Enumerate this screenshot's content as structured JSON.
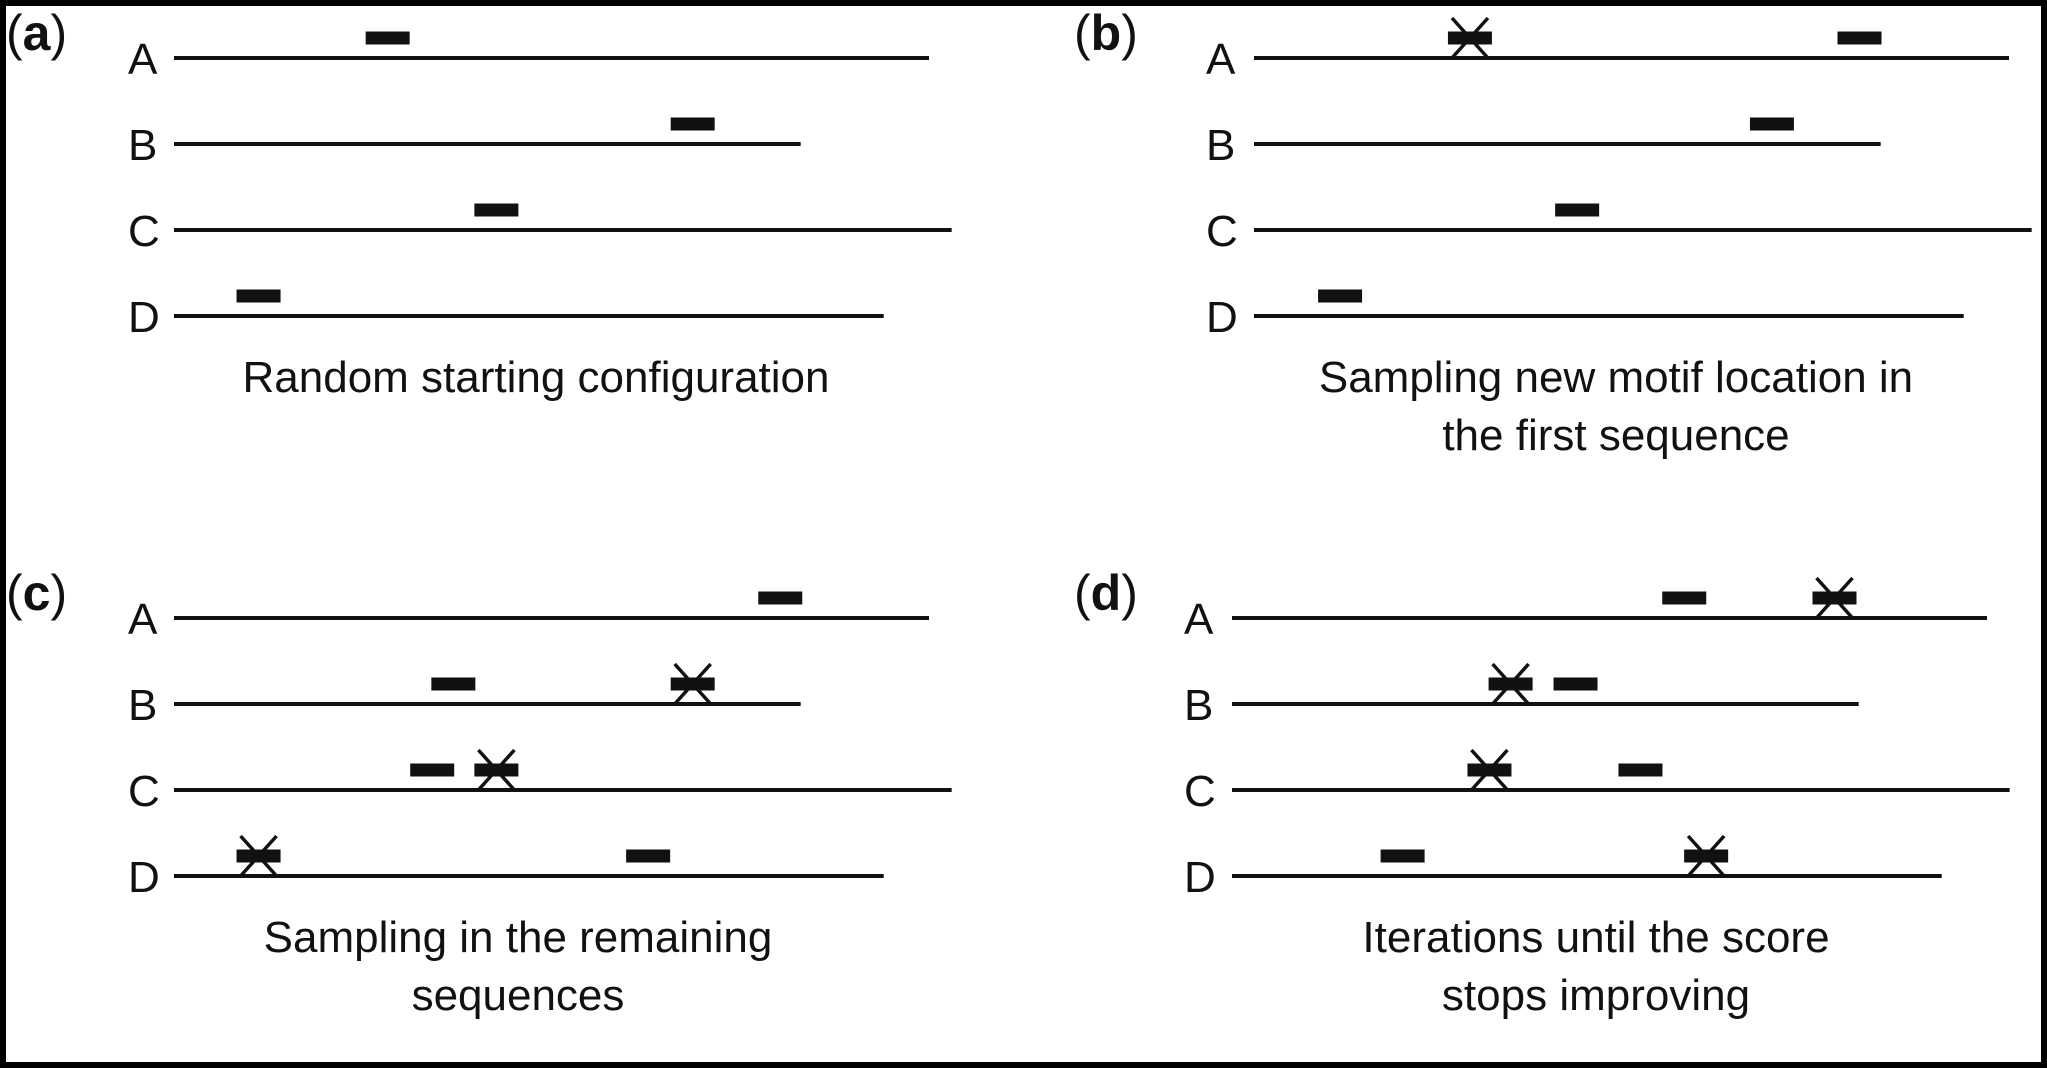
{
  "diagram": {
    "type": "motif-sampling-schematic",
    "colors": {
      "background": "#ffffff",
      "frame": "#000000",
      "ink": "#111111"
    },
    "panels": [
      {
        "id": "a",
        "label": "a",
        "caption_lines": [
          "Random starting configuration"
        ],
        "sequences": [
          {
            "name": "A",
            "length": 1.0,
            "motifs": [
              {
                "pos": 0.283,
                "crossed": false
              }
            ]
          },
          {
            "name": "B",
            "length": 0.83,
            "motifs": [
              {
                "pos": 0.687,
                "crossed": false
              }
            ]
          },
          {
            "name": "C",
            "length": 1.03,
            "motifs": [
              {
                "pos": 0.427,
                "crossed": false
              }
            ]
          },
          {
            "name": "D",
            "length": 0.94,
            "motifs": [
              {
                "pos": 0.112,
                "crossed": false
              }
            ]
          }
        ]
      },
      {
        "id": "b",
        "label": "b",
        "caption_lines": [
          "Sampling new motif location in",
          "the first sequence"
        ],
        "sequences": [
          {
            "name": "A",
            "length": 1.0,
            "motifs": [
              {
                "pos": 0.286,
                "crossed": true
              },
              {
                "pos": 0.802,
                "crossed": false
              }
            ]
          },
          {
            "name": "B",
            "length": 0.83,
            "motifs": [
              {
                "pos": 0.686,
                "crossed": false
              }
            ]
          },
          {
            "name": "C",
            "length": 1.03,
            "motifs": [
              {
                "pos": 0.428,
                "crossed": false
              }
            ]
          },
          {
            "name": "D",
            "length": 0.94,
            "motifs": [
              {
                "pos": 0.114,
                "crossed": false
              }
            ]
          }
        ]
      },
      {
        "id": "c",
        "label": "c",
        "caption_lines": [
          "Sampling in the remaining",
          "sequences"
        ],
        "sequences": [
          {
            "name": "A",
            "length": 1.0,
            "motifs": [
              {
                "pos": 0.803,
                "crossed": false
              }
            ]
          },
          {
            "name": "B",
            "length": 0.83,
            "motifs": [
              {
                "pos": 0.37,
                "crossed": false
              },
              {
                "pos": 0.687,
                "crossed": true
              }
            ]
          },
          {
            "name": "C",
            "length": 1.03,
            "motifs": [
              {
                "pos": 0.342,
                "crossed": false
              },
              {
                "pos": 0.427,
                "crossed": true
              }
            ]
          },
          {
            "name": "D",
            "length": 0.94,
            "motifs": [
              {
                "pos": 0.112,
                "crossed": true
              },
              {
                "pos": 0.628,
                "crossed": false
              }
            ]
          }
        ]
      },
      {
        "id": "d",
        "label": "d",
        "caption_lines": [
          "Iterations until the score",
          "stops improving"
        ],
        "sequences": [
          {
            "name": "A",
            "length": 1.0,
            "motifs": [
              {
                "pos": 0.599,
                "crossed": false
              },
              {
                "pos": 0.798,
                "crossed": true
              }
            ]
          },
          {
            "name": "B",
            "length": 0.83,
            "motifs": [
              {
                "pos": 0.369,
                "crossed": true
              },
              {
                "pos": 0.455,
                "crossed": false
              }
            ]
          },
          {
            "name": "C",
            "length": 1.03,
            "motifs": [
              {
                "pos": 0.341,
                "crossed": true
              },
              {
                "pos": 0.541,
                "crossed": false
              }
            ]
          },
          {
            "name": "D",
            "length": 0.94,
            "motifs": [
              {
                "pos": 0.226,
                "crossed": false
              },
              {
                "pos": 0.628,
                "crossed": true
              }
            ]
          }
        ]
      }
    ]
  }
}
